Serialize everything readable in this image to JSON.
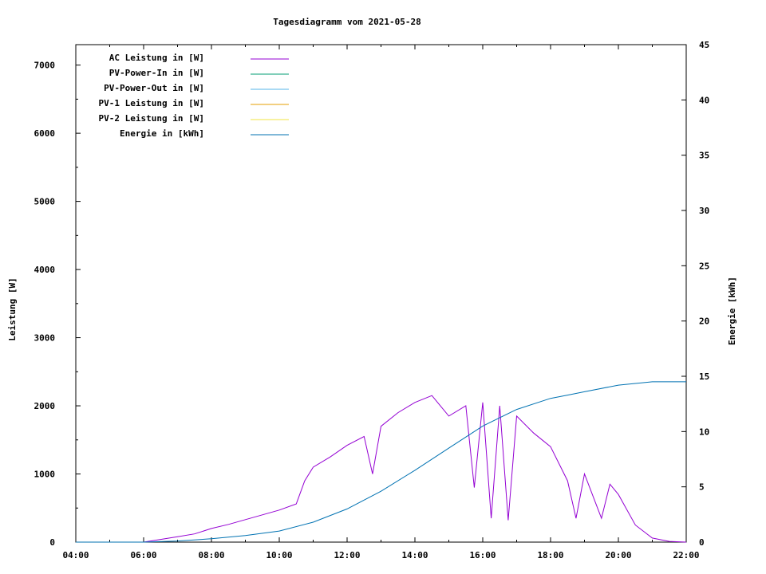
{
  "chart_data": {
    "type": "line",
    "title": "Tagesdiagramm vom 2021-05-28",
    "ylabel": "Leistung [W]",
    "y2label": "Energie [kWh]",
    "xlabel": "",
    "x_ticks": [
      "04:00",
      "06:00",
      "08:00",
      "10:00",
      "12:00",
      "14:00",
      "16:00",
      "18:00",
      "20:00",
      "22:00"
    ],
    "y_ticks": [
      "0",
      "1000",
      "2000",
      "3000",
      "4000",
      "5000",
      "6000",
      "7000"
    ],
    "y2_ticks": [
      "0",
      "5",
      "10",
      "15",
      "20",
      "25",
      "30",
      "35",
      "40",
      "45"
    ],
    "xlim": [
      "04:00",
      "22:00"
    ],
    "ylim": [
      0,
      7300
    ],
    "y2lim": [
      0,
      45
    ],
    "grid": false,
    "legend_position": "top-left",
    "series": [
      {
        "name": "AC Leistung in [W]",
        "color": "#9400d3",
        "axis": "left",
        "points": [
          [
            "06:00",
            0
          ],
          [
            "06:30",
            40
          ],
          [
            "07:00",
            80
          ],
          [
            "07:30",
            120
          ],
          [
            "08:00",
            200
          ],
          [
            "08:30",
            260
          ],
          [
            "09:00",
            330
          ],
          [
            "09:30",
            400
          ],
          [
            "10:00",
            470
          ],
          [
            "10:30",
            560
          ],
          [
            "10:45",
            900
          ],
          [
            "11:00",
            1100
          ],
          [
            "11:30",
            1250
          ],
          [
            "12:00",
            1420
          ],
          [
            "12:30",
            1550
          ],
          [
            "12:45",
            1000
          ],
          [
            "13:00",
            1700
          ],
          [
            "13:30",
            1900
          ],
          [
            "14:00",
            2050
          ],
          [
            "14:30",
            2150
          ],
          [
            "15:00",
            1850
          ],
          [
            "15:30",
            2000
          ],
          [
            "15:45",
            800
          ],
          [
            "16:00",
            2050
          ],
          [
            "16:15",
            350
          ],
          [
            "16:30",
            2000
          ],
          [
            "16:45",
            320
          ],
          [
            "17:00",
            1850
          ],
          [
            "17:30",
            1600
          ],
          [
            "18:00",
            1400
          ],
          [
            "18:30",
            900
          ],
          [
            "18:45",
            350
          ],
          [
            "19:00",
            1000
          ],
          [
            "19:30",
            350
          ],
          [
            "19:45",
            850
          ],
          [
            "20:00",
            700
          ],
          [
            "20:30",
            250
          ],
          [
            "21:00",
            60
          ],
          [
            "21:30",
            10
          ],
          [
            "22:00",
            0
          ]
        ]
      },
      {
        "name": "PV-Power-In in [W]",
        "color": "#009e73",
        "axis": "left",
        "points": []
      },
      {
        "name": "PV-Power-Out in [W]",
        "color": "#56b4e9",
        "axis": "left",
        "points": []
      },
      {
        "name": "PV-1 Leistung in [W]",
        "color": "#e69f00",
        "axis": "left",
        "points": []
      },
      {
        "name": "PV-2 Leistung in [W]",
        "color": "#f0e442",
        "axis": "left",
        "points": []
      },
      {
        "name": "Energie in [kWh]",
        "color": "#0072b2",
        "axis": "right",
        "points": [
          [
            "04:00",
            0
          ],
          [
            "06:00",
            0
          ],
          [
            "07:00",
            0.1
          ],
          [
            "08:00",
            0.3
          ],
          [
            "09:00",
            0.6
          ],
          [
            "10:00",
            1.0
          ],
          [
            "11:00",
            1.8
          ],
          [
            "12:00",
            3.0
          ],
          [
            "13:00",
            4.6
          ],
          [
            "14:00",
            6.5
          ],
          [
            "15:00",
            8.5
          ],
          [
            "16:00",
            10.5
          ],
          [
            "17:00",
            12.0
          ],
          [
            "18:00",
            13.0
          ],
          [
            "18:30",
            13.3
          ],
          [
            "19:00",
            13.6
          ],
          [
            "20:00",
            14.2
          ],
          [
            "21:00",
            14.5
          ],
          [
            "22:00",
            14.5
          ]
        ]
      }
    ]
  }
}
